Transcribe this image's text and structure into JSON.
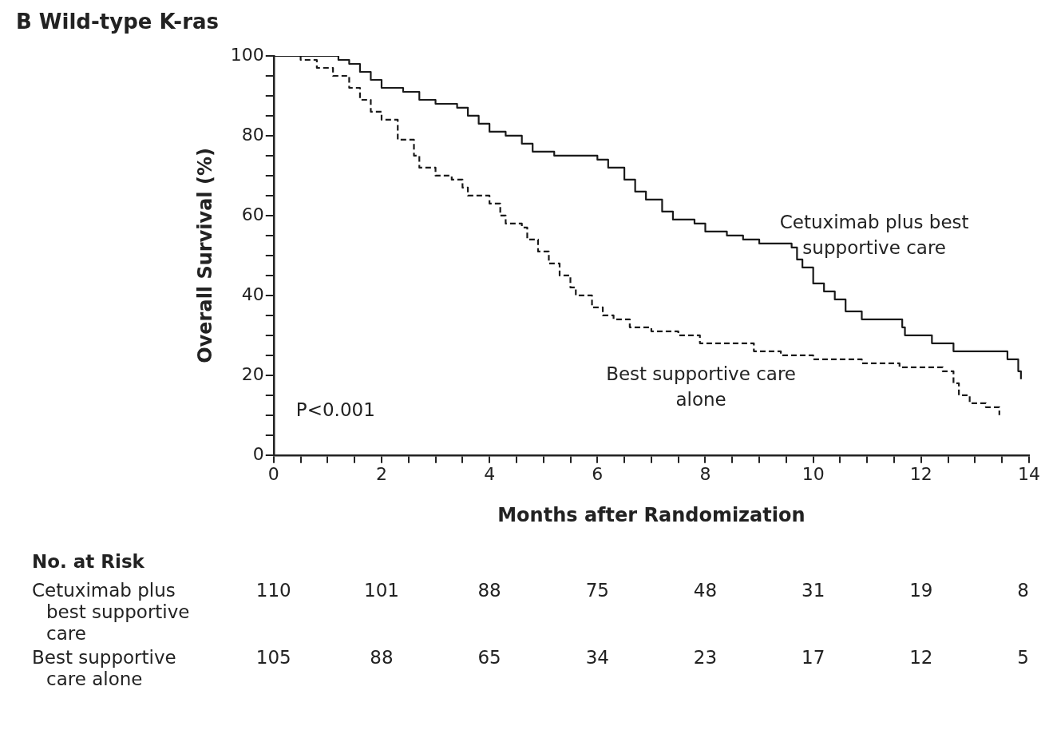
{
  "chart_data": {
    "type": "step",
    "title": "B Wild-type K-ras",
    "xlabel": "Months after Randomization",
    "ylabel": "Overall Survival (%)",
    "xlim": [
      0,
      14
    ],
    "ylim": [
      0,
      100
    ],
    "xticks": [
      0,
      {
        "value": 0.5,
        "label": null
      },
      {
        "value": 1,
        "label": null
      },
      {
        "value": 1.5,
        "label": null
      },
      2,
      {
        "value": 2.5,
        "label": null
      },
      {
        "value": 3,
        "label": null
      },
      {
        "value": 3.5,
        "label": null
      },
      4,
      {
        "value": 4.5,
        "label": null
      },
      {
        "value": 5,
        "label": null
      },
      {
        "value": 5.5,
        "label": null
      },
      6,
      {
        "value": 6.5,
        "label": null
      },
      {
        "value": 7,
        "label": null
      },
      {
        "value": 7.5,
        "label": null
      },
      8,
      {
        "value": 8.5,
        "label": null
      },
      {
        "value": 9,
        "label": null
      },
      {
        "value": 9.5,
        "label": null
      },
      10,
      {
        "value": 10.5,
        "label": null
      },
      {
        "value": 11,
        "label": null
      },
      {
        "value": 11.5,
        "label": null
      },
      12,
      {
        "value": 12.5,
        "label": null
      },
      {
        "value": 13,
        "label": null
      },
      {
        "value": 13.5,
        "label": null
      },
      14
    ],
    "yticks": [
      0,
      {
        "value": 5,
        "label": null
      },
      {
        "value": 10,
        "label": null
      },
      {
        "value": 15,
        "label": null
      },
      20,
      {
        "value": 25,
        "label": null
      },
      {
        "value": 30,
        "label": null
      },
      {
        "value": 35,
        "label": null
      },
      40,
      {
        "value": 45,
        "label": null
      },
      {
        "value": 50,
        "label": null
      },
      {
        "value": 55,
        "label": null
      },
      60,
      {
        "value": 65,
        "label": null
      },
      {
        "value": 70,
        "label": null
      },
      {
        "value": 75,
        "label": null
      },
      80,
      {
        "value": 85,
        "label": null
      },
      {
        "value": 90,
        "label": null
      },
      {
        "value": 95,
        "label": null
      },
      100
    ],
    "grid": false,
    "legend": false,
    "marker": "none",
    "series": [
      {
        "name": "Cetuximab plus best supportive care",
        "color": "#1a1a1a",
        "line_style": "solid",
        "x": [
          0,
          1.2,
          1.4,
          1.6,
          1.8,
          2,
          2.4,
          2.7,
          3,
          3.4,
          3.6,
          3.8,
          4,
          4.3,
          4.6,
          4.8,
          5.2,
          6,
          6.2,
          6.5,
          6.7,
          6.9,
          7.2,
          7.4,
          7.8,
          8,
          8.4,
          8.7,
          9,
          9.6,
          9.7,
          9.8,
          10,
          10.2,
          10.4,
          10.6,
          10.9,
          11.65,
          11.7,
          12.2,
          12.6,
          13.6,
          13.8,
          13.85
        ],
        "values": [
          100,
          99,
          98,
          96,
          94,
          92,
          91,
          89,
          88,
          87,
          85,
          83,
          81,
          80,
          78,
          76,
          75,
          74,
          72,
          69,
          66,
          64,
          61,
          59,
          58,
          56,
          55,
          54,
          53,
          52,
          49,
          47,
          43,
          41,
          39,
          36,
          34,
          32,
          30,
          28,
          26,
          24,
          21,
          19
        ]
      },
      {
        "name": "Best supportive care alone",
        "color": "#1a1a1a",
        "line_style": "dashed",
        "x": [
          0,
          0.5,
          0.8,
          1.1,
          1.4,
          1.6,
          1.8,
          2,
          2.3,
          2.6,
          2.7,
          3,
          3.3,
          3.5,
          3.6,
          4,
          4.2,
          4.3,
          4.6,
          4.7,
          4.9,
          5.1,
          5.3,
          5.5,
          5.6,
          5.9,
          6.1,
          6.3,
          6.6,
          7,
          7.5,
          7.9,
          8.9,
          9.4,
          10,
          10.9,
          11.6,
          12.4,
          12.6,
          12.7,
          12.9,
          13.2,
          13.45
        ],
        "values": [
          100,
          99,
          97,
          95,
          92,
          89,
          86,
          84,
          79,
          75,
          72,
          70,
          69,
          67,
          65,
          63,
          60,
          58,
          57,
          54,
          51,
          48,
          45,
          42,
          40,
          37,
          35,
          34,
          32,
          31,
          30,
          28,
          26,
          25,
          24,
          23,
          22,
          21,
          18,
          15,
          13,
          12,
          10
        ]
      }
    ],
    "annotations": [
      "P<0.001",
      "No. at Risk",
      "110",
      "101",
      "88",
      "75",
      "48",
      "31",
      "19",
      "8",
      "105",
      "88",
      "65",
      "34",
      "23",
      "17",
      "12",
      "5"
    ]
  }
}
